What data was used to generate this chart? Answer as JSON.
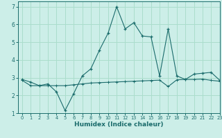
{
  "xlabel": "Humidex (Indice chaleur)",
  "xlim": [
    -0.5,
    23
  ],
  "ylim": [
    1,
    7.3
  ],
  "yticks": [
    1,
    2,
    3,
    4,
    5,
    6,
    7
  ],
  "xticks": [
    0,
    1,
    2,
    3,
    4,
    5,
    6,
    7,
    8,
    9,
    10,
    11,
    12,
    13,
    14,
    15,
    16,
    17,
    18,
    19,
    20,
    21,
    22,
    23
  ],
  "background_color": "#cceee8",
  "grid_color": "#aaddcc",
  "line_color": "#1a6b6b",
  "series1_x": [
    0,
    1,
    2,
    3,
    4,
    5,
    6,
    7,
    8,
    9,
    10,
    11,
    12,
    13,
    14,
    15,
    16,
    17,
    18,
    19,
    20,
    21,
    22,
    23
  ],
  "series1_y": [
    2.9,
    2.75,
    2.55,
    2.65,
    2.2,
    1.15,
    2.1,
    3.1,
    3.5,
    4.55,
    5.5,
    7.0,
    5.75,
    6.1,
    5.35,
    5.3,
    3.1,
    5.75,
    3.1,
    2.9,
    3.2,
    3.25,
    3.3,
    2.85
  ],
  "series2_x": [
    0,
    1,
    2,
    3,
    4,
    5,
    6,
    7,
    8,
    9,
    10,
    11,
    12,
    13,
    14,
    15,
    16,
    17,
    18,
    19,
    20,
    21,
    22,
    23
  ],
  "series2_y": [
    2.85,
    2.55,
    2.55,
    2.55,
    2.55,
    2.55,
    2.6,
    2.65,
    2.7,
    2.72,
    2.74,
    2.76,
    2.78,
    2.8,
    2.82,
    2.84,
    2.86,
    2.5,
    2.88,
    2.9,
    2.9,
    2.92,
    2.85,
    2.8
  ]
}
